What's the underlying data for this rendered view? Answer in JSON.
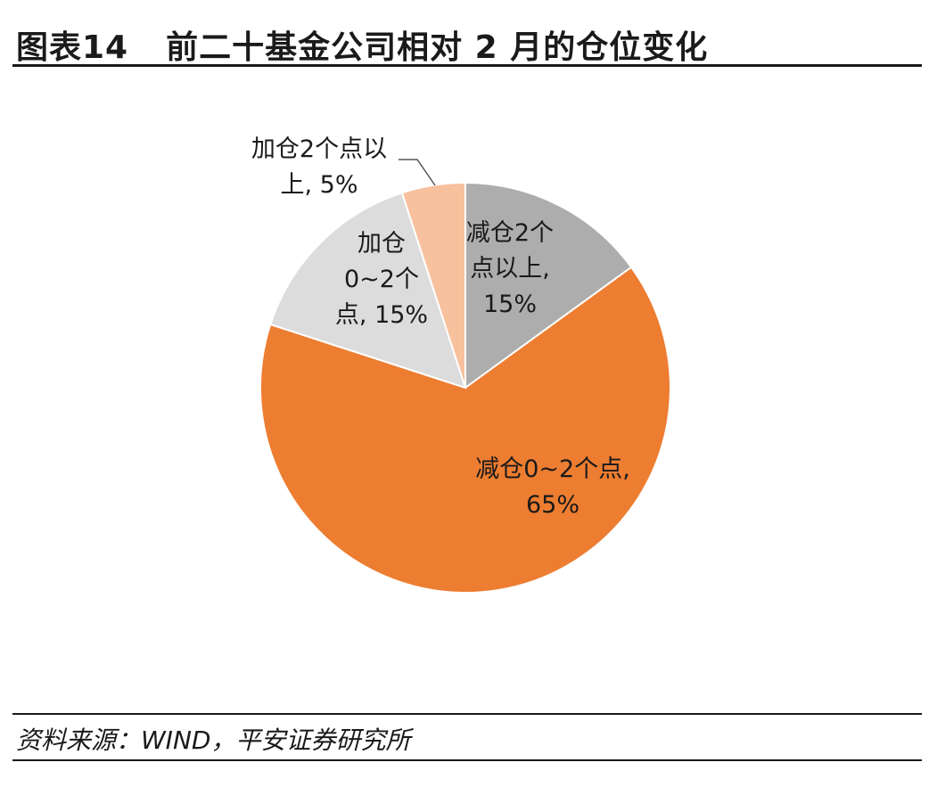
{
  "header": {
    "figure_number": "图表14",
    "title": "前二十基金公司相对 2 月的仓位变化"
  },
  "chart_data": {
    "type": "pie",
    "title": "前二十基金公司相对 2 月的仓位变化",
    "start_angle_deg": 0,
    "direction": "clockwise",
    "slices": [
      {
        "name": "减仓2个点以上",
        "value": 15,
        "label_lines": [
          "减仓2个",
          "点以上,",
          "15%"
        ],
        "color": "#ADADAD"
      },
      {
        "name": "减仓0~2个点",
        "value": 65,
        "label_lines": [
          "减仓0~2个点,",
          "65%"
        ],
        "color": "#ED7D31"
      },
      {
        "name": "加仓0~2个点",
        "value": 15,
        "label_lines": [
          "加仓",
          "0~2个",
          "点, 15%"
        ],
        "color": "#DCDCDC"
      },
      {
        "name": "加仓2个点以上",
        "value": 5,
        "label_lines": [
          "加仓2个点以",
          "上, 5%"
        ],
        "color": "#F8C19E"
      }
    ]
  },
  "footer": {
    "source": "资料来源：WIND，平安证券研究所"
  }
}
